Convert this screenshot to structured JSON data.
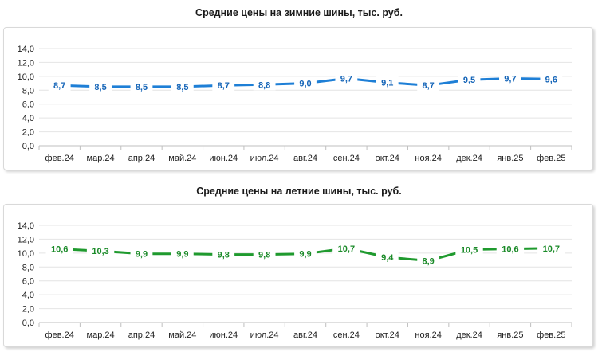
{
  "chart_data": [
    {
      "type": "line",
      "title": "Средние цены на зимние шины, тыс. руб.",
      "categories": [
        "фев.24",
        "мар.24",
        "апр.24",
        "май.24",
        "июн.24",
        "июл.24",
        "авг.24",
        "сен.24",
        "окт.24",
        "ноя.24",
        "дек.24",
        "янв.25",
        "фев.25"
      ],
      "values": [
        8.7,
        8.5,
        8.5,
        8.5,
        8.7,
        8.8,
        9.0,
        9.7,
        9.1,
        8.7,
        9.5,
        9.7,
        9.6
      ],
      "value_labels": [
        "8,7",
        "8,5",
        "8,5",
        "8,5",
        "8,7",
        "8,8",
        "9,0",
        "9,7",
        "9,1",
        "8,7",
        "9,5",
        "9,7",
        "9,6"
      ],
      "ylim": [
        0,
        14
      ],
      "yticks": [
        "0,0",
        "2,0",
        "4,0",
        "6,0",
        "8,0",
        "10,0",
        "12,0",
        "14,0"
      ],
      "grid": true,
      "color": "#1e7fd6",
      "label_color": "#1565b8"
    },
    {
      "type": "line",
      "title": "Средние цены на летние шины, тыс. руб.",
      "categories": [
        "фев.24",
        "мар.24",
        "апр.24",
        "май.24",
        "июн.24",
        "июл.24",
        "авг.24",
        "сен.24",
        "окт.24",
        "ноя.24",
        "дек.24",
        "янв.25",
        "фев.25"
      ],
      "values": [
        10.6,
        10.3,
        9.9,
        9.9,
        9.8,
        9.8,
        9.9,
        10.7,
        9.4,
        8.9,
        10.5,
        10.6,
        10.7
      ],
      "value_labels": [
        "10,6",
        "10,3",
        "9,9",
        "9,9",
        "9,8",
        "9,8",
        "9,9",
        "10,7",
        "9,4",
        "8,9",
        "10,5",
        "10,6",
        "10,7"
      ],
      "ylim": [
        0,
        14
      ],
      "yticks": [
        "0,0",
        "2,0",
        "4,0",
        "6,0",
        "8,0",
        "10,0",
        "12,0",
        "14,0"
      ],
      "grid": true,
      "color": "#1f9a2e",
      "label_color": "#1a8a28"
    }
  ]
}
